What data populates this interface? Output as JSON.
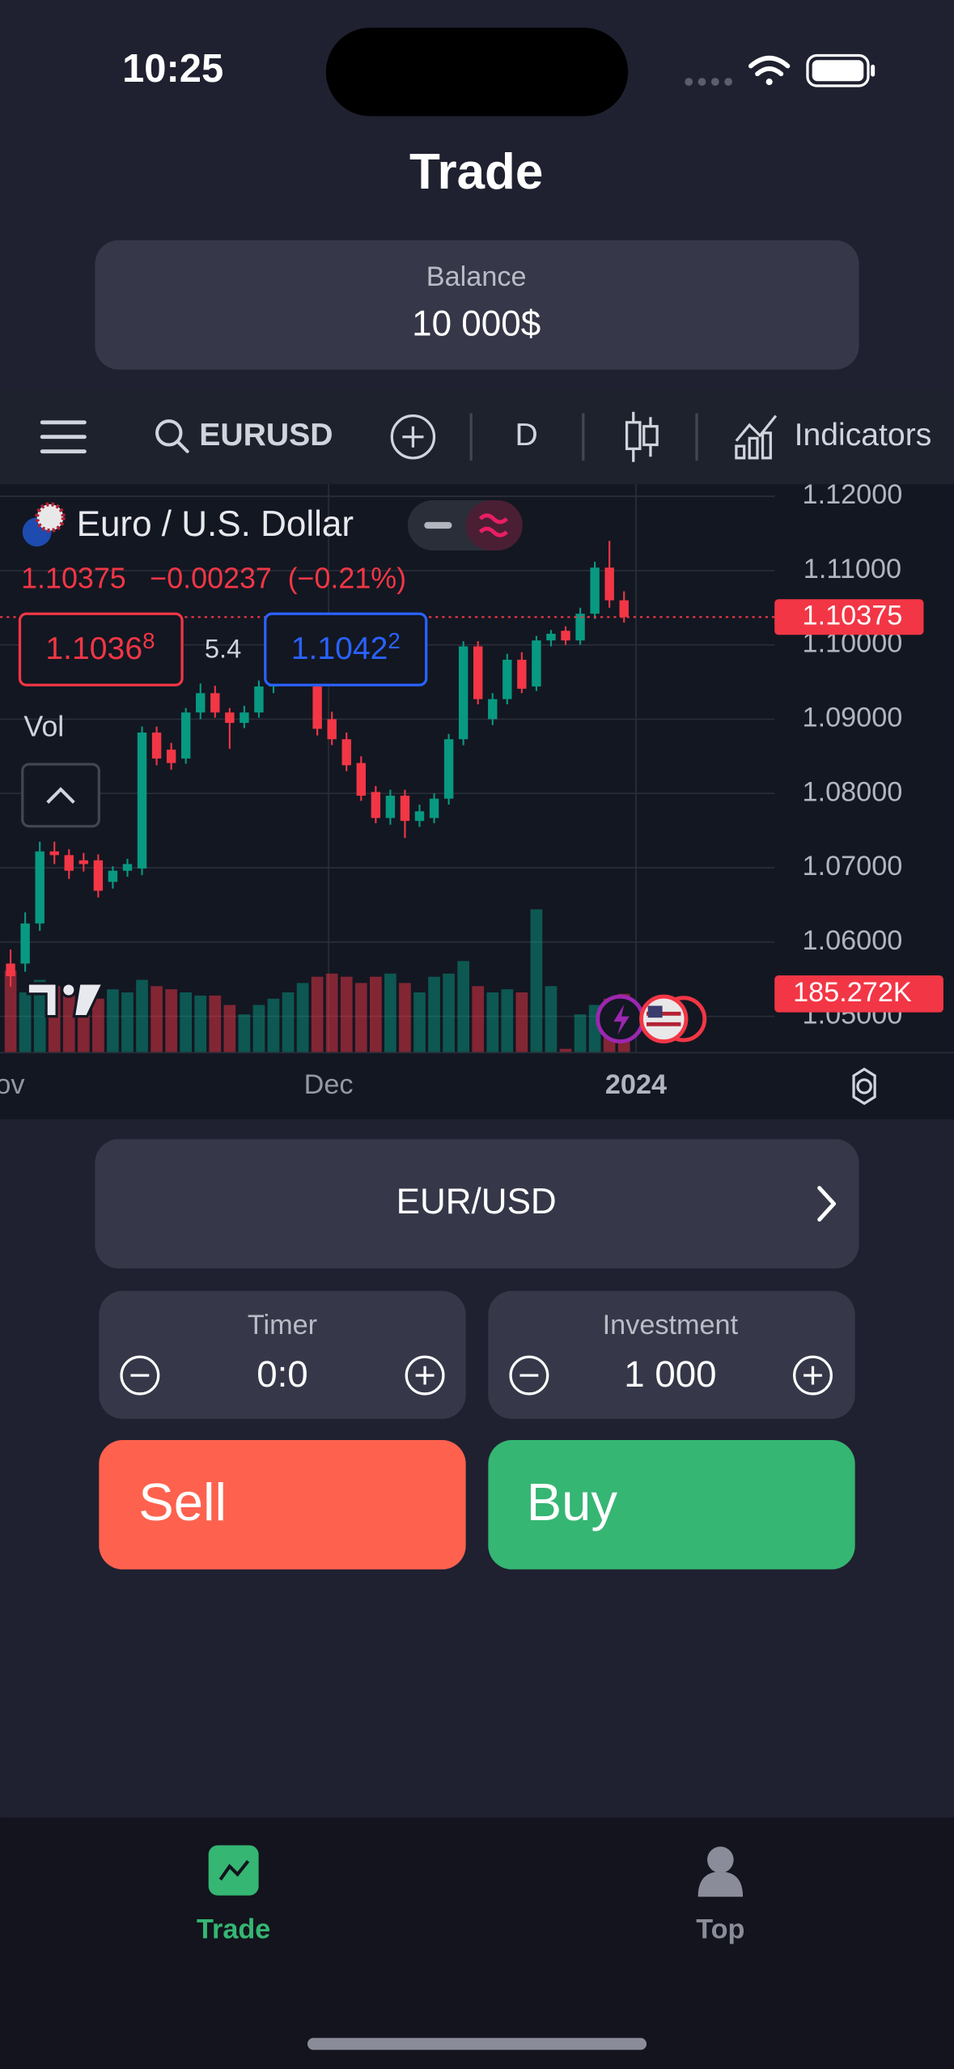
{
  "status_bar": {
    "time": "10:25"
  },
  "header": {
    "title": "Trade"
  },
  "balance": {
    "label": "Balance",
    "value": "10 000$"
  },
  "toolbar": {
    "symbol": "EURUSD",
    "interval": "D",
    "indicators": "Indicators"
  },
  "chart_data": {
    "type": "candlestick",
    "title": "Euro / U.S. Dollar",
    "change": "−0.00237",
    "change_percent": "(−0.21%)",
    "sell_price": {
      "main": "1.1036",
      "pip": "8"
    },
    "spread": "5.4",
    "buy_price": {
      "main": "1.1042",
      "pip": "2"
    },
    "volume_title": "Vol",
    "up_color": "#089981",
    "down_color": "#f23645",
    "open": [
      1.0571,
      1.0571,
      1.0625,
      1.0722,
      1.0717,
      1.071,
      1.071,
      1.0681,
      1.0696,
      1.0699,
      1.0882,
      1.0859,
      1.0847,
      1.0909,
      1.0935,
      1.0909,
      1.0895,
      1.0909,
      1.0944,
      1.0971,
      1.098,
      1.0944,
      1.09,
      1.0873,
      1.0841,
      1.0802,
      1.0767,
      1.0797,
      1.0763,
      1.0767,
      1.0793,
      1.0873,
      1.0998,
      1.09,
      1.0927,
      1.098,
      1.0944,
      1.1006,
      1.1019,
      1.1006,
      1.1042,
      1.1104,
      1.106
    ],
    "high": [
      1.059,
      1.064,
      1.0735,
      1.0735,
      1.0725,
      1.072,
      1.0718,
      1.0702,
      1.0712,
      1.089,
      1.089,
      1.0868,
      1.0915,
      1.0948,
      1.0945,
      1.0915,
      1.0918,
      1.0952,
      1.0978,
      1.099,
      1.0995,
      1.0955,
      1.091,
      1.0882,
      1.085,
      1.081,
      1.0805,
      1.0805,
      1.0785,
      1.08,
      1.088,
      1.1005,
      1.1005,
      1.0935,
      1.0988,
      1.099,
      1.1012,
      1.102,
      1.1025,
      1.105,
      1.1112,
      1.114,
      1.1072
    ],
    "low": [
      1.054,
      1.056,
      1.0615,
      1.0705,
      1.0685,
      1.0695,
      1.066,
      1.0672,
      1.0688,
      1.069,
      1.0838,
      1.0832,
      1.084,
      1.09,
      1.0902,
      1.086,
      1.0888,
      1.0902,
      1.0935,
      1.0962,
      1.097,
      1.0878,
      1.0865,
      1.083,
      1.079,
      1.076,
      1.0758,
      1.074,
      1.0755,
      1.076,
      1.0785,
      1.0865,
      1.092,
      1.0892,
      1.092,
      1.0935,
      1.0938,
      1.0998,
      1.1,
      1.1,
      1.1035,
      1.105,
      1.103
    ],
    "close": [
      1.0554,
      1.0625,
      1.0722,
      1.0717,
      1.0696,
      1.0705,
      1.0669,
      1.0696,
      1.0705,
      1.0882,
      1.0847,
      1.0841,
      1.0909,
      1.0935,
      1.0909,
      1.0895,
      1.0909,
      1.0944,
      1.0971,
      1.098,
      1.0985,
      1.0887,
      1.0873,
      1.0838,
      1.0797,
      1.0767,
      1.0797,
      1.0763,
      1.0776,
      1.0793,
      1.0873,
      1.0998,
      1.0927,
      1.0927,
      1.098,
      1.0941,
      1.1006,
      1.1015,
      1.1006,
      1.1042,
      1.1104,
      1.106,
      1.10375
    ],
    "volume": [
      260,
      190,
      230,
      210,
      190,
      180,
      170,
      200,
      190,
      230,
      210,
      200,
      190,
      180,
      180,
      150,
      120,
      150,
      170,
      190,
      220,
      240,
      250,
      240,
      220,
      240,
      250,
      220,
      190,
      240,
      250,
      290,
      210,
      190,
      200,
      190,
      455,
      210,
      10,
      120,
      150,
      170,
      185.272
    ],
    "volume_label": "185.272K",
    "ylim": [
      1.0452,
      1.1216
    ],
    "volume_lim": [
      0,
      1810
    ],
    "yticks": [
      {
        "value": 1.12,
        "label": "1.12000"
      },
      {
        "value": 1.11,
        "label": "1.11000"
      },
      {
        "value": 1.1,
        "label": "1.10000"
      },
      {
        "value": 1.09,
        "label": "1.09000"
      },
      {
        "value": 1.08,
        "label": "1.08000"
      },
      {
        "value": 1.07,
        "label": "1.07000"
      },
      {
        "value": 1.06,
        "label": "1.06000"
      },
      {
        "value": 1.05,
        "label": "1.05000"
      }
    ],
    "x_labels": [
      "Nov",
      "Dec",
      "2024"
    ],
    "grid": true
  },
  "pair_selector": {
    "label": "EUR/USD"
  },
  "timer": {
    "label": "Timer",
    "value": "0:0"
  },
  "investment": {
    "label": "Investment",
    "value": "1 000"
  },
  "actions": {
    "sell": "Sell",
    "buy": "Buy"
  },
  "tab_bar": {
    "tabs": [
      "Trade",
      "Top"
    ]
  }
}
